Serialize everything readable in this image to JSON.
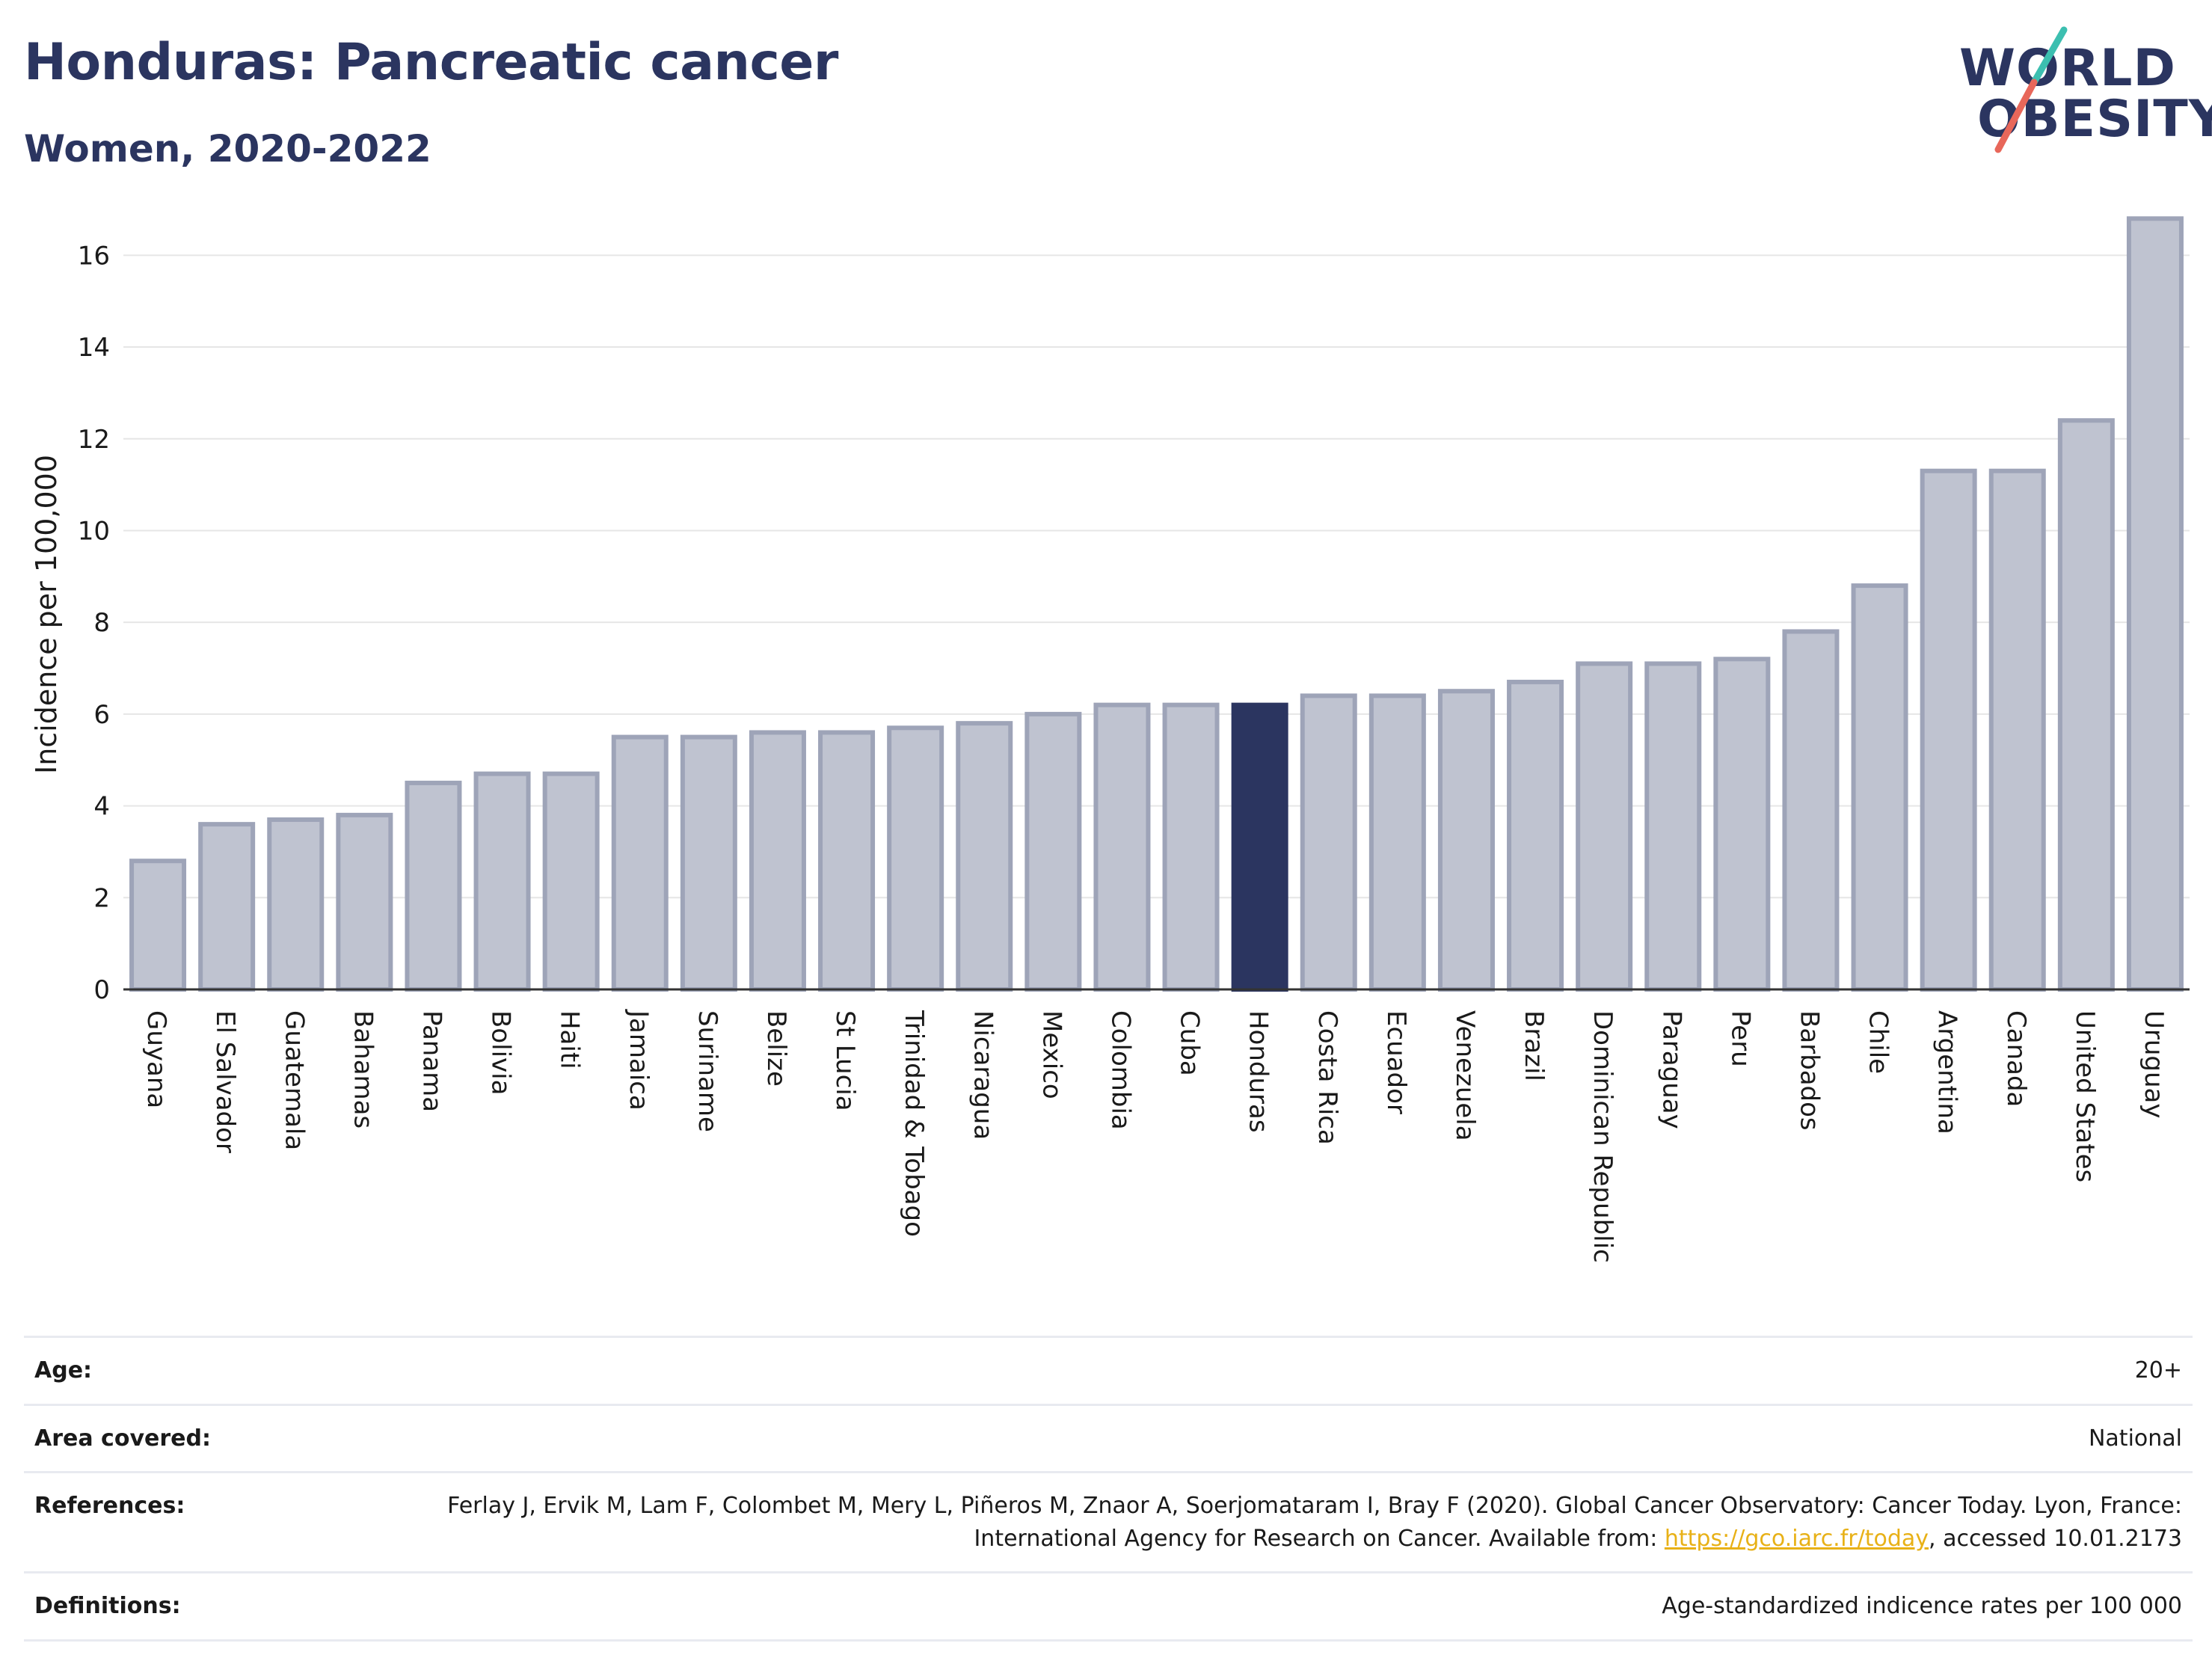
{
  "header": {
    "title": "Honduras: Pancreatic cancer",
    "subtitle": "Women, 2020-2022"
  },
  "logo": {
    "line1": "WORLD",
    "line2": "OBESITY",
    "slash_color_top": "#3cbfb0",
    "slash_color_bottom": "#e8675a"
  },
  "chart_data": {
    "type": "bar",
    "ylabel": "Incidence per 100,000",
    "xlabel": "",
    "ylim": [
      0,
      17
    ],
    "yticks": [
      0,
      2,
      4,
      6,
      8,
      10,
      12,
      14,
      16
    ],
    "grid": true,
    "highlight": "Honduras",
    "colors": {
      "bar": "#bfc3d0",
      "bar_edge": "#9ea4b8",
      "highlight": "#2b3560"
    },
    "categories": [
      "Guyana",
      "El Salvador",
      "Guatemala",
      "Bahamas",
      "Panama",
      "Bolivia",
      "Haiti",
      "Jamaica",
      "Suriname",
      "Belize",
      "St Lucia",
      "Trinidad & Tobago",
      "Nicaragua",
      "Mexico",
      "Colombia",
      "Cuba",
      "Honduras",
      "Costa Rica",
      "Ecuador",
      "Venezuela",
      "Brazil",
      "Dominican Republic",
      "Paraguay",
      "Peru",
      "Barbados",
      "Chile",
      "Argentina",
      "Canada",
      "United States",
      "Uruguay"
    ],
    "values": [
      2.8,
      3.6,
      3.7,
      3.8,
      4.5,
      4.7,
      4.7,
      5.5,
      5.5,
      5.6,
      5.6,
      5.7,
      5.8,
      6.0,
      6.2,
      6.2,
      6.2,
      6.4,
      6.4,
      6.5,
      6.7,
      7.1,
      7.1,
      7.2,
      7.8,
      8.8,
      11.3,
      11.3,
      12.4,
      16.8
    ]
  },
  "info": {
    "age_label": "Age:",
    "age_value": "20+",
    "area_label": "Area covered:",
    "area_value": "National",
    "references_label": "References:",
    "references_text_1": "Ferlay J, Ervik M, Lam F, Colombet M, Mery L, Piñeros M, Znaor A, Soerjomataram I, Bray F (2020). Global Cancer Observatory: Cancer Today. Lyon, France: International Agency for Research on Cancer. Available from: ",
    "references_link": "https://gco.iarc.fr/today",
    "references_text_2": ", accessed 10.01.2173",
    "definitions_label": "Definitions:",
    "definitions_value": "Age-standardized indicence rates per 100 000"
  }
}
